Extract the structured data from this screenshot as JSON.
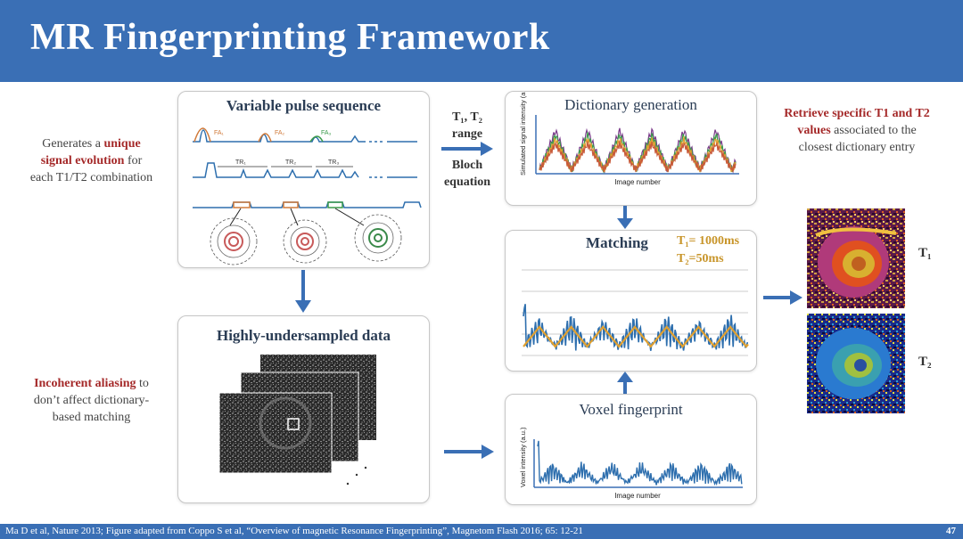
{
  "slide": {
    "title": "MR Fingerprinting Framework",
    "page_number": "47",
    "citation": "Ma D et al, Nature 2013; Figure adapted from Coppo S et al, “Overview of magnetic Resonance Fingerprinting”, Magnetom Flash 2016; 65: 12-21"
  },
  "left_notes": {
    "top": {
      "pre": "Generates a ",
      "hl1": "unique",
      "hl2": "signal evolution",
      "post1": " for",
      "post2": "each T1/T2 combination"
    },
    "bottom": {
      "hl": "Incoherent aliasing",
      "post1": " to",
      "line2": "don’t affect dictionary-",
      "line3": "based matching"
    }
  },
  "panels": {
    "pulse": {
      "title": "Variable pulse sequence",
      "fa_labels": [
        "FA₁",
        "FA₂",
        "FA₃"
      ],
      "tr_labels": [
        "TR₁",
        "TR₂",
        "TR₃"
      ]
    },
    "undersampled": {
      "title": "Highly-undersampled data"
    },
    "dictionary": {
      "title": "Dictionary generation",
      "ylabel": "Simulated signal intensity (a.u.)",
      "xlabel": "Image number"
    },
    "matching": {
      "title": "Matching"
    },
    "voxel": {
      "title": "Voxel fingerprint",
      "ylabel": "Voxel intensity (a.u.)",
      "xlabel": "Image number"
    }
  },
  "mid_labels": {
    "range_l1": "T₁, T₂",
    "range_l2": "range",
    "bloch_l1": "Bloch",
    "bloch_l2": "equation"
  },
  "match_values": {
    "t1": "T₁= 1000ms",
    "t2": "T₂=50ms"
  },
  "right_note": {
    "hl1": "Retrieve specific T1 and T2",
    "hl2": "values",
    "post": " associated to the",
    "line3": "closest dictionary entry"
  },
  "maps": {
    "t1_label": "T₁",
    "t2_label": "T₂"
  },
  "colors": {
    "header": "#3a6fb5",
    "arrow": "#3a6fb5",
    "highlight": "#a52a2a",
    "match_value": "#c8952a",
    "signal_blue": "#2e6fae",
    "signal_orange": "#e0a030"
  }
}
